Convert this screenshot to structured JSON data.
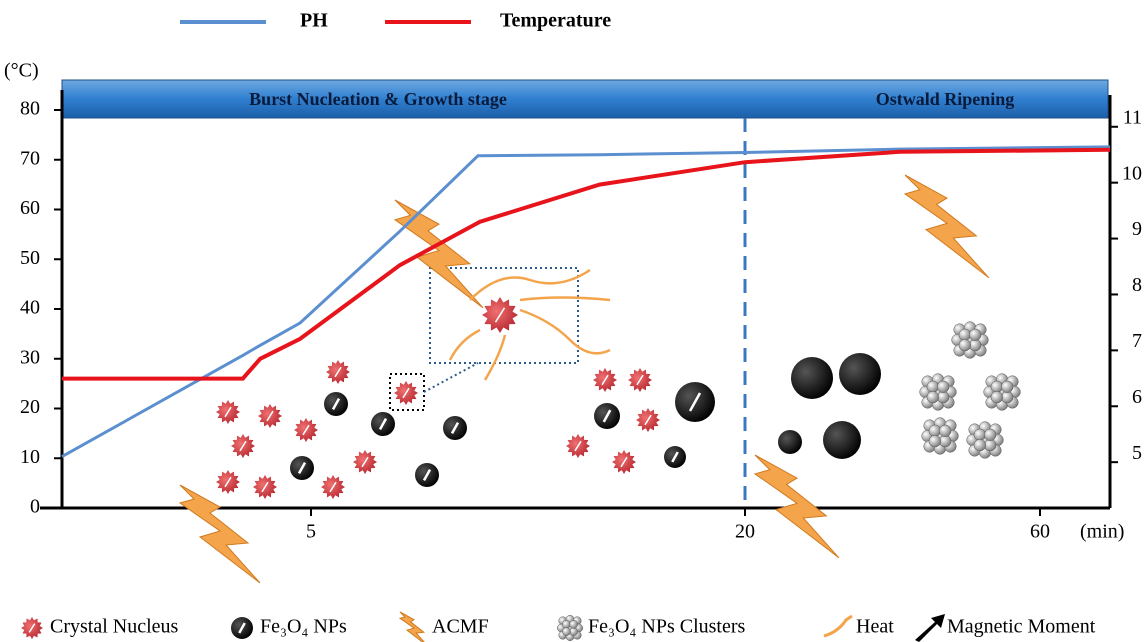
{
  "chart_data": {
    "type": "line",
    "stage_labels": [
      "Burst Nucleation  & Growth stage",
      "Ostwald Ripening"
    ],
    "y_label": "(°C)",
    "x_label": "(min)",
    "x": [
      0,
      3.63,
      3.98,
      4.78,
      8.07,
      10.77,
      10.83,
      14.97,
      20,
      41,
      70
    ],
    "xlim": [
      0,
      70
    ],
    "xticks": [
      5,
      20,
      60
    ],
    "ylim": [
      0,
      80
    ],
    "yticks": [
      0,
      10,
      20,
      30,
      40,
      50,
      60,
      70,
      80
    ],
    "y2lim": [
      4.18,
      11.3
    ],
    "y2ticks": [
      5,
      6,
      7,
      8,
      9,
      10,
      11
    ],
    "stage_divider": 20,
    "series": [
      {
        "name": "PH",
        "color": "#5b8fd0",
        "axis": "y2",
        "values": [
          5.1,
          6.91,
          7.09,
          7.49,
          9.13,
          10.48,
          10.48,
          10.5,
          10.54,
          10.6,
          10.64
        ]
      },
      {
        "name": "Temperature",
        "color": "#e8141b",
        "values": [
          26,
          26,
          30,
          34,
          48.8,
          57.3,
          57.5,
          65,
          69.5,
          71.6,
          72
        ]
      }
    ],
    "symbol_legend": [
      "Crystal Nucleus",
      "Fe₃O₄ NPs",
      "ACMF",
      "Fe₃O₄ NPs Clusters",
      "Heat",
      "Magnetic Moment"
    ]
  }
}
